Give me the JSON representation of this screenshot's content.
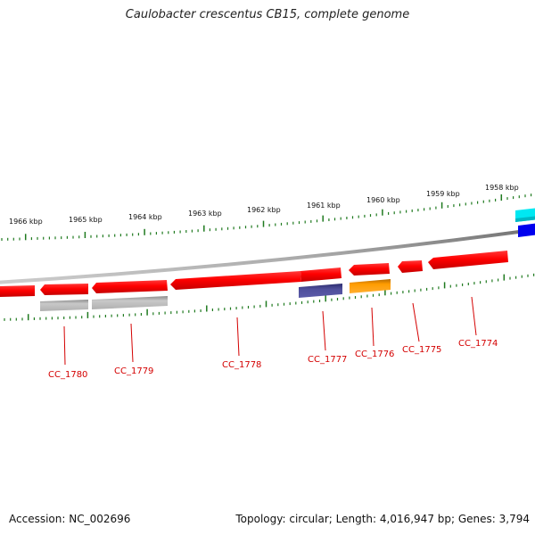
{
  "title": "Caulobacter crescentus CB15, complete genome",
  "footer": {
    "accession": "Accession: NC_002696",
    "summary": "Topology: circular; Length: 4,016,947 bp; Genes: 3,794"
  },
  "scale": {
    "unit": "kbp",
    "ticks": [
      {
        "label": "1966 kbp",
        "pos": 1966
      },
      {
        "label": "1965 kbp",
        "pos": 1965
      },
      {
        "label": "1964 kbp",
        "pos": 1964
      },
      {
        "label": "1963 kbp",
        "pos": 1963
      },
      {
        "label": "1962 kbp",
        "pos": 1962
      },
      {
        "label": "1961 kbp",
        "pos": 1961
      },
      {
        "label": "1960 kbp",
        "pos": 1960
      },
      {
        "label": "1959 kbp",
        "pos": 1959
      },
      {
        "label": "1958 kbp",
        "pos": 1958
      }
    ]
  },
  "gene_labels": [
    {
      "id": "g1780",
      "label": "CC_1780"
    },
    {
      "id": "g1779",
      "label": "CC_1779"
    },
    {
      "id": "g1778",
      "label": "CC_1778"
    },
    {
      "id": "g1777",
      "label": "CC_1777"
    },
    {
      "id": "g1776",
      "label": "CC_1776"
    },
    {
      "id": "g1775",
      "label": "CC_1775"
    },
    {
      "id": "g1774",
      "label": "CC_1774"
    }
  ],
  "colors": {
    "gene_red": "#ff0000",
    "gene_gray": "#b4b4b4",
    "gene_purple": "#4a4a94",
    "gene_orange": "#ff9a00",
    "gene_cyan": "#00e6f0",
    "gene_blue": "#0000ee",
    "backbone": "#8a8a8a",
    "tick": "#1f7a1f",
    "label": "#d40000"
  }
}
